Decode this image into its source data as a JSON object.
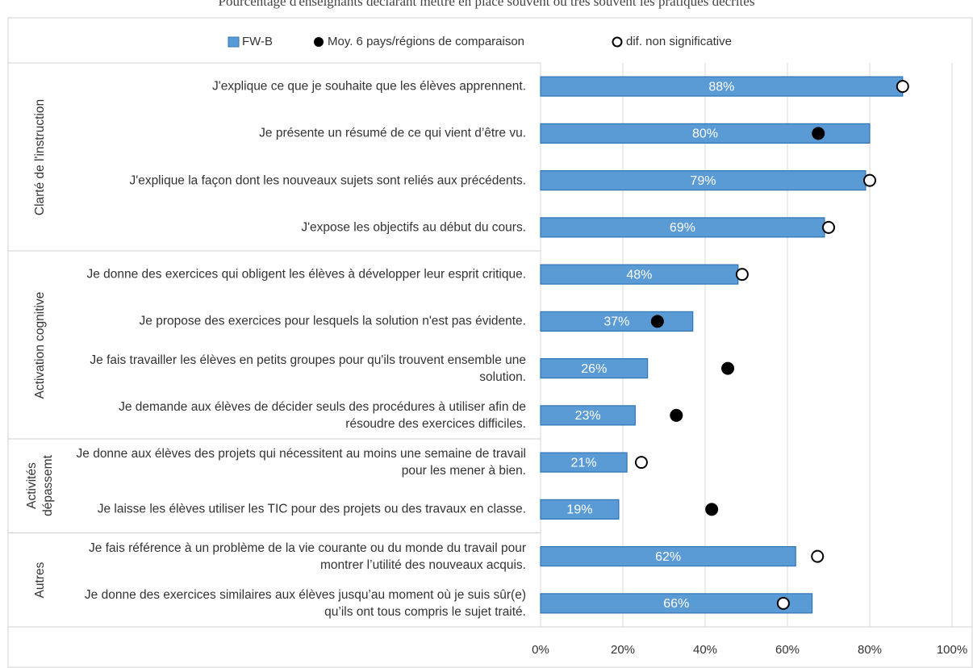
{
  "chart_data": {
    "type": "bar",
    "orientation": "horizontal",
    "title": "Pourcentage d'enseignants déclarant mettre en place souvent ou très souvent les pratiques décrites",
    "categories": [
      "J'explique ce que je souhaite que les élèves apprennent.",
      "Je présente un résumé de ce qui vient d’être vu.",
      "J'explique la façon dont les nouveaux sujets sont reliés aux précédents.",
      "J'expose les objectifs au début du cours.",
      "Je donne des exercices qui obligent les élèves à développer leur esprit critique.",
      "Je propose des exercices pour lesquels la solution n'est pas évidente.",
      "Je fais travailler les élèves en petits groupes pour qu'ils trouvent ensemble une solution.",
      "Je demande aux élèves de décider seuls des procédures à utiliser afin de résoudre des exercices difficiles.",
      "Je donne aux élèves des projets qui nécessitent au moins une semaine de travail pour les mener à bien.",
      "Je laisse les élèves utiliser les TIC pour des projets ou des travaux en classe.",
      "Je fais référence à un problème de la vie courante ou du monde du travail pour montrer l’utilité des nouveaux acquis.",
      "Je donne des exercices similaires aux élèves jusqu’au moment où je suis sûr(e) qu’ils ont tous compris le sujet traité."
    ],
    "groups": [
      {
        "label": "Clarté de l'instruction",
        "size": 4
      },
      {
        "label": "Activation cognitive",
        "size": 4
      },
      {
        "label": "Activités dépassemt",
        "size": 2
      },
      {
        "label": "Autres",
        "size": 2
      }
    ],
    "series": [
      {
        "name": "FW-B",
        "color": "#5b9bd5",
        "values": [
          88,
          80,
          79,
          69,
          48,
          37,
          26,
          23,
          21,
          19,
          62,
          66
        ],
        "value_labels": [
          "88%",
          "80%",
          "79%",
          "69%",
          "48%",
          "37%",
          "26%",
          "23%",
          "21%",
          "19%",
          "62%",
          "66%"
        ]
      }
    ],
    "comparison": {
      "name": "Moy. 6 pays/régions de comparaison",
      "color": "#000000",
      "values": [
        88,
        67.5,
        80,
        70,
        49,
        28.4,
        45.5,
        33,
        24.5,
        41.6,
        67.3,
        59
      ],
      "significant": [
        false,
        true,
        false,
        false,
        false,
        true,
        true,
        true,
        false,
        true,
        false,
        false
      ],
      "nonsignificant_label": "dif. non significative"
    },
    "xlim": [
      0,
      100
    ],
    "xticks": [
      {
        "value": 0,
        "label": "0%"
      },
      {
        "value": 20,
        "label": "20%"
      },
      {
        "value": 40,
        "label": "40%"
      },
      {
        "value": 60,
        "label": "60%"
      },
      {
        "value": 80,
        "label": "80%"
      },
      {
        "value": 100,
        "label": "100%"
      }
    ],
    "grid": true,
    "legend": "top"
  }
}
